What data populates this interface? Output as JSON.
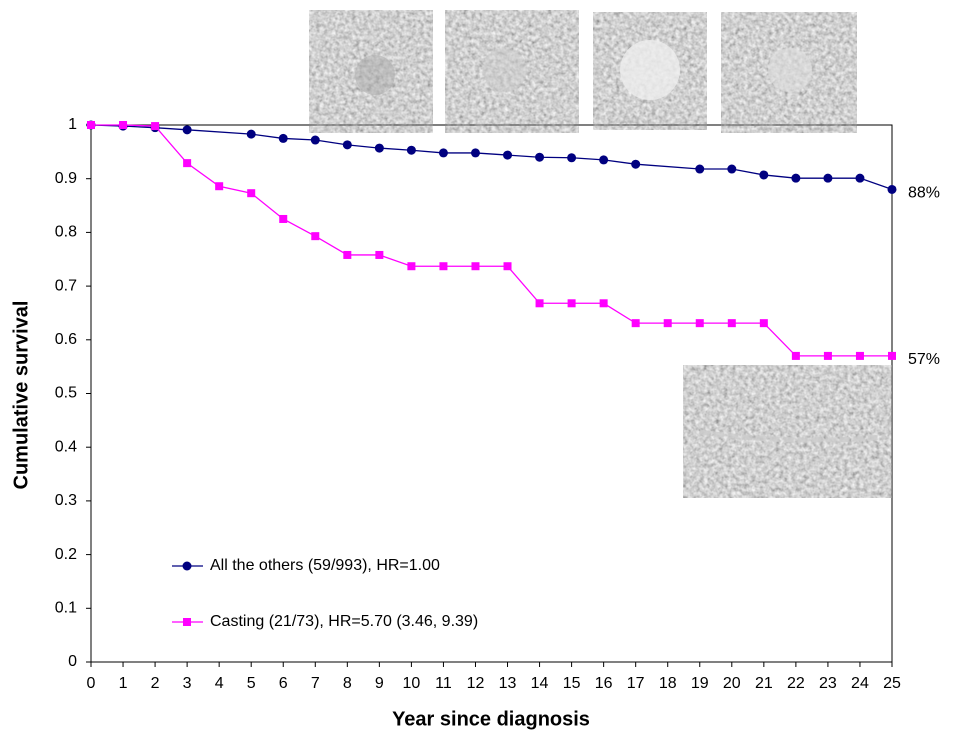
{
  "chart_data": {
    "type": "line",
    "x_label": "Year since diagnosis",
    "y_label": "Cumulative survival",
    "xlim": [
      0,
      25
    ],
    "xticks": [
      0,
      1,
      2,
      3,
      4,
      5,
      6,
      7,
      8,
      9,
      10,
      11,
      12,
      13,
      14,
      15,
      16,
      17,
      18,
      19,
      20,
      21,
      22,
      23,
      24,
      25
    ],
    "ylim": [
      0,
      1
    ],
    "yticks": [
      0,
      0.1,
      0.2,
      0.3,
      0.4,
      0.5,
      0.6,
      0.7,
      0.8,
      0.9,
      1
    ],
    "series": [
      {
        "name": "All the others (59/993), HR=1.00",
        "color": "#000080",
        "marker": "circle",
        "x": [
          0,
          1,
          2,
          3,
          5,
          6,
          7,
          8,
          9,
          10,
          11,
          12,
          13,
          14,
          15,
          16,
          17,
          19,
          20,
          21,
          22,
          23,
          24,
          25
        ],
        "values": [
          1.0,
          0.998,
          0.995,
          0.991,
          0.983,
          0.975,
          0.972,
          0.963,
          0.957,
          0.953,
          0.948,
          0.948,
          0.944,
          0.94,
          0.939,
          0.935,
          0.927,
          0.918,
          0.918,
          0.907,
          0.901,
          0.901,
          0.901,
          0.88
        ],
        "end_label": "88%"
      },
      {
        "name": "Casting (21/73), HR=5.70 (3.46, 9.39)",
        "color": "#ff00ff",
        "marker": "square",
        "x": [
          0,
          1,
          2,
          3,
          4,
          5,
          6,
          7,
          8,
          9,
          10,
          11,
          12,
          13,
          14,
          15,
          16,
          17,
          18,
          19,
          20,
          21,
          22,
          23,
          24,
          25
        ],
        "values": [
          1.0,
          1.0,
          0.998,
          0.929,
          0.886,
          0.873,
          0.825,
          0.793,
          0.758,
          0.758,
          0.737,
          0.737,
          0.737,
          0.737,
          0.668,
          0.668,
          0.668,
          0.631,
          0.631,
          0.631,
          0.631,
          0.631,
          0.57,
          0.57,
          0.57,
          0.57
        ],
        "end_label": "57%"
      }
    ]
  }
}
